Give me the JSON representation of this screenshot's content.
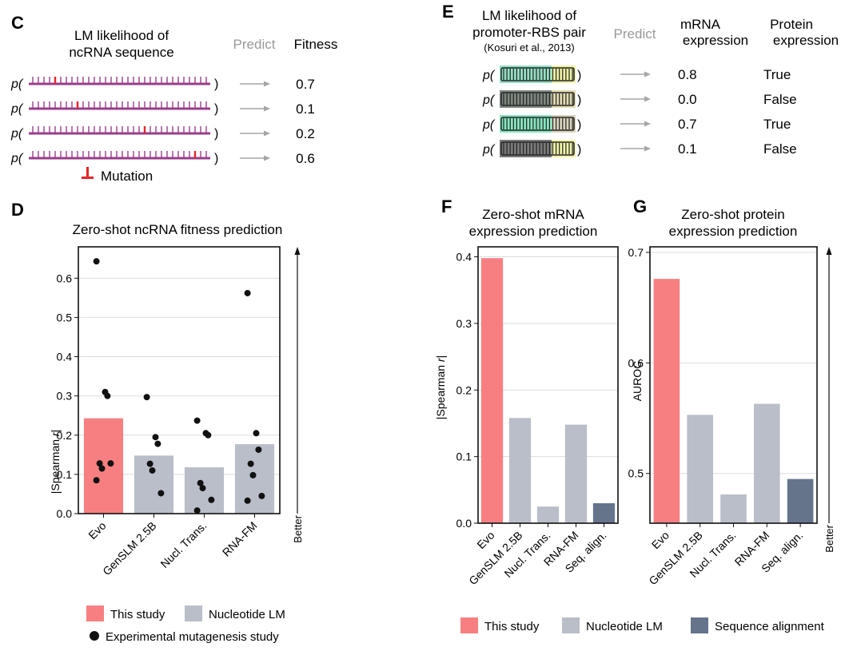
{
  "colors": {
    "this_study": "#f77f81",
    "nucleotide_lm": "#b9bec8",
    "sequence_alignment": "#66748b",
    "mutation": "#e8232a",
    "ncrna": "#9a3e8a",
    "arrow": "#a6a6a6"
  },
  "panelC": {
    "letter": "C",
    "header_line1": "LM likelihood of",
    "header_line2": "ncRNA sequence",
    "predict": "Predict",
    "outcome": "Fitness",
    "p_open": "p(",
    "p_close": ")",
    "rows": [
      {
        "fitness": "0.7",
        "mutation_frac": 0.12
      },
      {
        "fitness": "0.1",
        "mutation_frac": 0.27
      },
      {
        "fitness": "0.2",
        "mutation_frac": 0.66
      },
      {
        "fitness": "0.6",
        "mutation_frac": 0.93
      }
    ],
    "mutation_label": "Mutation",
    "mutation_icon": "mutation-marker-icon"
  },
  "panelE": {
    "letter": "E",
    "header_line1": "LM likelihood of",
    "header_line2": "promoter-RBS pair",
    "citation": "(Kosuri et al., 2013)",
    "predict": "Predict",
    "col1_line1": "mRNA",
    "col1_line2": "expression",
    "col2_line1": "Protein",
    "col2_line2": "expression",
    "p_open": "p(",
    "p_close": ")",
    "rows": [
      {
        "mrna": "0.8",
        "protein": "True",
        "promoter_color": "#93dfc4",
        "rbs_color": "#eef0a2"
      },
      {
        "mrna": "0.0",
        "protein": "False",
        "promoter_color": "#7f8880",
        "rbs_color": "#e2dbb0"
      },
      {
        "mrna": "0.7",
        "protein": "True",
        "promoter_color": "#86e6c0",
        "rbs_color": "#d9d4bd"
      },
      {
        "mrna": "0.1",
        "protein": "False",
        "promoter_color": "#7b7b7b",
        "rbs_color": "#f1f3a8"
      }
    ]
  },
  "chart_data": [
    {
      "panel": "D",
      "type": "bar",
      "title": "Zero-shot ncRNA fitness prediction",
      "ylabel_prefix": "|Spearman ",
      "ylabel_italic": "r",
      "ylabel_suffix": "|",
      "ylim": [
        0,
        0.68
      ],
      "yticks": [
        "0.0",
        "0.1",
        "0.2",
        "0.3",
        "0.4",
        "0.5",
        "0.6"
      ],
      "grid": true,
      "categories": [
        "Evo",
        "GenSLM 2.5B",
        "Nucl. Trans.",
        "RNA-FM"
      ],
      "values": [
        0.243,
        0.148,
        0.118,
        0.177
      ],
      "bar_groups": [
        "this_study",
        "nucleotide_lm",
        "nucleotide_lm",
        "nucleotide_lm"
      ],
      "points": [
        [
          0.643,
          0.31,
          0.3,
          0.128,
          0.115,
          0.128,
          0.085
        ],
        [
          0.297,
          0.195,
          0.178,
          0.127,
          0.11,
          0.052
        ],
        [
          0.237,
          0.205,
          0.2,
          0.078,
          0.065,
          0.035,
          0.008
        ],
        [
          0.562,
          0.205,
          0.163,
          0.127,
          0.098,
          0.045,
          0.033
        ]
      ],
      "better_label": "Better",
      "legend": [
        {
          "label": "This study",
          "group": "this_study"
        },
        {
          "label": "Nucleotide LM",
          "group": "nucleotide_lm"
        },
        {
          "label": "Experimental mutagenesis study",
          "group": "point"
        }
      ]
    },
    {
      "panel": "F",
      "type": "bar",
      "title_line1": "Zero-shot mRNA",
      "title_line2": "expression prediction",
      "ylabel_prefix": "|Spearman ",
      "ylabel_italic": "r",
      "ylabel_suffix": "|",
      "ylim": [
        0,
        0.415
      ],
      "yticks": [
        "0.0",
        "0.1",
        "0.2",
        "0.3",
        "0.4"
      ],
      "grid": true,
      "categories": [
        "Evo",
        "GenSLM 2.5B",
        "Nucl. Trans.",
        "RNA-FM",
        "Seq. align."
      ],
      "values": [
        0.398,
        0.158,
        0.025,
        0.148,
        0.03
      ],
      "bar_groups": [
        "this_study",
        "nucleotide_lm",
        "nucleotide_lm",
        "nucleotide_lm",
        "sequence_alignment"
      ]
    },
    {
      "panel": "G",
      "type": "bar",
      "title_line1": "Zero-shot protein",
      "title_line2": "expression prediction",
      "ylabel": "AUROC",
      "ylim": [
        0.455,
        0.705
      ],
      "yticks": [
        "0.5",
        "0.6",
        "0.7"
      ],
      "grid": true,
      "categories": [
        "Evo",
        "GenSLM 2.5B",
        "Nucl. Trans.",
        "RNA-FM",
        "Seq. align."
      ],
      "values": [
        0.676,
        0.553,
        0.481,
        0.563,
        0.495
      ],
      "bar_groups": [
        "this_study",
        "nucleotide_lm",
        "nucleotide_lm",
        "nucleotide_lm",
        "sequence_alignment"
      ],
      "better_label": "Better",
      "legend": [
        {
          "label": "This study",
          "group": "this_study"
        },
        {
          "label": "Nucleotide LM",
          "group": "nucleotide_lm"
        },
        {
          "label": "Sequence alignment",
          "group": "sequence_alignment"
        }
      ]
    }
  ],
  "panel_letters": {
    "D": "D",
    "F": "F",
    "G": "G"
  }
}
